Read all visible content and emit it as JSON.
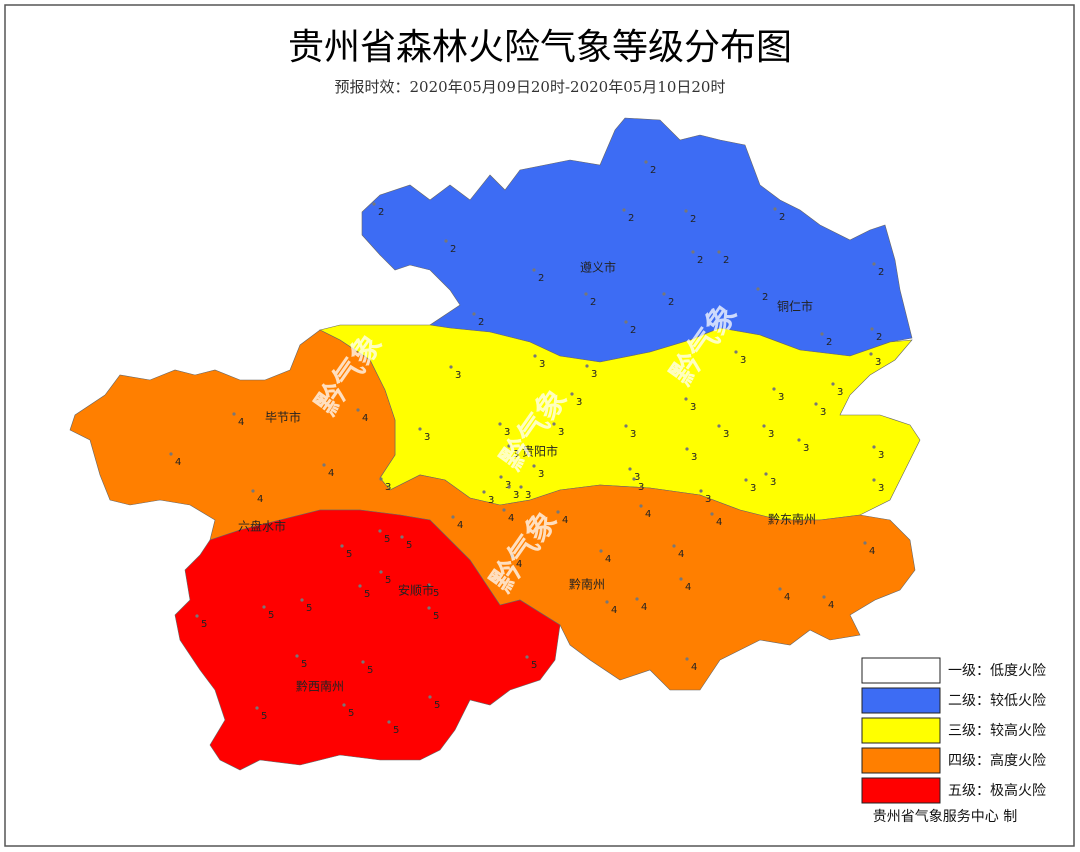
{
  "title": "贵州省森林火险气象等级分布图",
  "subtitle": "预报时效：2020年05月09日20时-2020年05月10日20时",
  "legend": [
    {
      "label": "一级：低度火险",
      "color": "#ffffff"
    },
    {
      "label": "二级：较低火险",
      "color": "#3d6cf4"
    },
    {
      "label": "三级：较高火险",
      "color": "#ffff00"
    },
    {
      "label": "四级：高度火险",
      "color": "#ff7f00"
    },
    {
      "label": "五级：极高火险",
      "color": "#ff0000"
    }
  ],
  "cities": [
    "遵义市",
    "铜仁市",
    "毕节市",
    "贵阳市",
    "黔东南州",
    "六盘水市",
    "安顺市",
    "黔南州",
    "黔西南州"
  ],
  "stations": [
    2,
    2,
    2,
    2,
    2,
    2,
    2,
    2,
    2,
    2,
    2,
    2,
    2,
    2,
    2,
    2,
    2,
    3,
    3,
    3,
    3,
    3,
    3,
    3,
    3,
    3,
    3,
    3,
    3,
    3,
    3,
    3,
    3,
    3,
    3,
    3,
    3,
    3,
    3,
    3,
    3,
    3,
    3,
    3,
    3,
    3,
    3,
    3,
    3,
    4,
    4,
    4,
    4,
    4,
    4,
    4,
    4,
    4,
    4,
    4,
    4,
    4,
    4,
    4,
    4,
    4,
    4,
    4,
    4,
    5,
    5,
    5,
    5,
    5,
    5,
    5,
    5,
    5,
    5,
    5,
    5,
    5,
    5,
    5,
    5,
    5
  ],
  "watermarks": [
    "黔气象",
    "黔气象",
    "黔气象",
    "黔气象"
  ],
  "credit": "贵州省气象服务中心 制"
}
